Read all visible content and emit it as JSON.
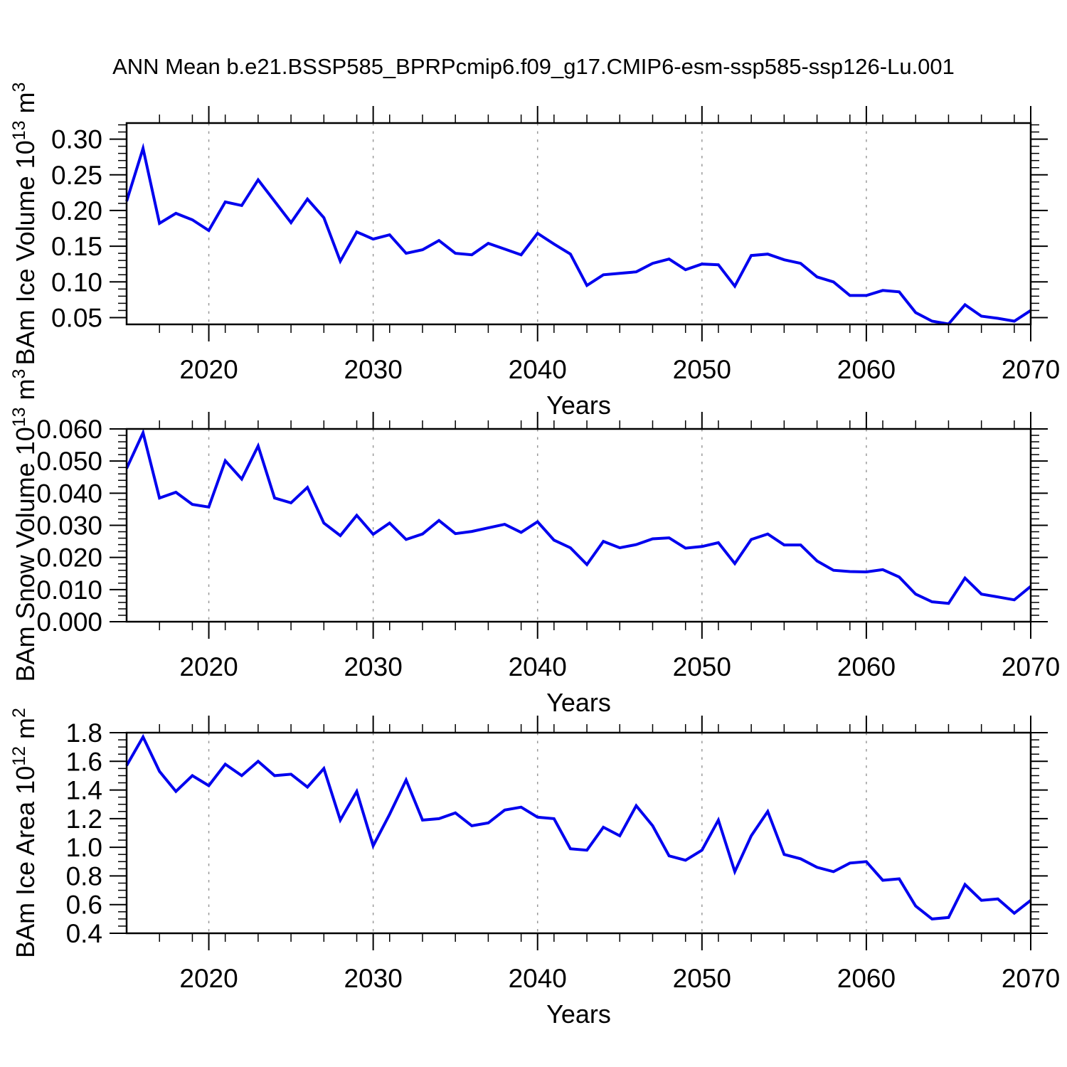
{
  "title": "ANN Mean b.e21.BSSP585_BPRPcmip6.f09_g17.CMIP6-esm-ssp585-ssp126-Lu.001",
  "line_color": "#0000ee",
  "grid_color": "#999999",
  "axis_color": "#000000",
  "years": [
    2015,
    2016,
    2017,
    2018,
    2019,
    2020,
    2021,
    2022,
    2023,
    2024,
    2025,
    2026,
    2027,
    2028,
    2029,
    2030,
    2031,
    2032,
    2033,
    2034,
    2035,
    2036,
    2037,
    2038,
    2039,
    2040,
    2041,
    2042,
    2043,
    2044,
    2045,
    2046,
    2047,
    2048,
    2049,
    2050,
    2051,
    2052,
    2053,
    2054,
    2055,
    2056,
    2057,
    2058,
    2059,
    2060,
    2061,
    2062,
    2063,
    2064,
    2065,
    2066,
    2067,
    2068,
    2069,
    2070
  ],
  "chart_data": [
    {
      "type": "line",
      "name": "ice-volume",
      "ylabel": "BAm Ice Volume 10^13 m^3",
      "ylabel_segments": [
        {
          "text": "BAm Ice Volume 10"
        },
        {
          "text": "13",
          "sup": true
        },
        {
          "text": " m"
        },
        {
          "text": "3",
          "sup": true
        }
      ],
      "xlabel": "Years",
      "xlim": [
        2015,
        2070
      ],
      "xticks": [
        2020,
        2030,
        2040,
        2050,
        2060,
        2070
      ],
      "xminor_step": 2,
      "ylim": [
        0.0405,
        0.3225
      ],
      "yticks": [
        0.05,
        0.1,
        0.15,
        0.2,
        0.25,
        0.3
      ],
      "yminor_step": 0.01,
      "ytick_decimals": 2,
      "grid": "vertical-dashed",
      "legend": "none",
      "values": [
        0.213,
        0.287,
        0.182,
        0.196,
        0.187,
        0.172,
        0.212,
        0.207,
        0.243,
        0.213,
        0.183,
        0.216,
        0.19,
        0.129,
        0.17,
        0.16,
        0.166,
        0.14,
        0.145,
        0.158,
        0.14,
        0.138,
        0.154,
        0.146,
        0.138,
        0.168,
        0.153,
        0.139,
        0.095,
        0.11,
        0.112,
        0.114,
        0.126,
        0.132,
        0.117,
        0.125,
        0.124,
        0.094,
        0.137,
        0.139,
        0.131,
        0.126,
        0.107,
        0.1,
        0.081,
        0.081,
        0.088,
        0.086,
        0.057,
        0.045,
        0.041,
        0.068,
        0.052,
        0.049,
        0.045,
        0.06
      ]
    },
    {
      "type": "line",
      "name": "snow-volume",
      "ylabel": "BAm Snow Volume 10^13 m^3",
      "ylabel_segments": [
        {
          "text": "BAm Snow Volume 10"
        },
        {
          "text": "13",
          "sup": true
        },
        {
          "text": " m"
        },
        {
          "text": "3",
          "sup": true
        }
      ],
      "xlabel": "Years",
      "xlim": [
        2015,
        2070
      ],
      "xticks": [
        2020,
        2030,
        2040,
        2050,
        2060,
        2070
      ],
      "xminor_step": 2,
      "ylim": [
        0.0,
        0.06
      ],
      "yticks": [
        0.0,
        0.01,
        0.02,
        0.03,
        0.04,
        0.05,
        0.06
      ],
      "yminor_step": 0.002,
      "ytick_decimals": 3,
      "grid": "vertical-dashed",
      "legend": "none",
      "values": [
        0.0477,
        0.0588,
        0.0385,
        0.0403,
        0.0365,
        0.0357,
        0.0501,
        0.0444,
        0.0547,
        0.0385,
        0.037,
        0.0418,
        0.0307,
        0.0268,
        0.0331,
        0.0272,
        0.0307,
        0.0256,
        0.0273,
        0.0315,
        0.0274,
        0.0281,
        0.0292,
        0.0303,
        0.0278,
        0.0311,
        0.0254,
        0.023,
        0.0178,
        0.025,
        0.023,
        0.024,
        0.0258,
        0.0261,
        0.0229,
        0.0234,
        0.0246,
        0.0181,
        0.0256,
        0.0273,
        0.0239,
        0.0239,
        0.0189,
        0.016,
        0.0156,
        0.0155,
        0.0162,
        0.0139,
        0.0086,
        0.0062,
        0.0057,
        0.0136,
        0.0086,
        0.0077,
        0.0068,
        0.011
      ]
    },
    {
      "type": "line",
      "name": "ice-area",
      "ylabel": "BAm Ice Area 10^12 m^2",
      "ylabel_segments": [
        {
          "text": "BAm Ice Area 10"
        },
        {
          "text": "12",
          "sup": true
        },
        {
          "text": " m"
        },
        {
          "text": "2",
          "sup": true
        }
      ],
      "xlabel": "Years",
      "xlim": [
        2015,
        2070
      ],
      "xticks": [
        2020,
        2030,
        2040,
        2050,
        2060,
        2070
      ],
      "xminor_step": 2,
      "ylim": [
        0.4,
        1.8
      ],
      "yticks": [
        0.4,
        0.6,
        0.8,
        1.0,
        1.2,
        1.4,
        1.6,
        1.8
      ],
      "yminor_step": 0.05,
      "ytick_decimals": 1,
      "grid": "vertical-dashed",
      "legend": "none",
      "values": [
        1.57,
        1.77,
        1.53,
        1.39,
        1.5,
        1.43,
        1.58,
        1.5,
        1.6,
        1.5,
        1.51,
        1.42,
        1.55,
        1.19,
        1.39,
        1.01,
        1.23,
        1.47,
        1.19,
        1.2,
        1.24,
        1.15,
        1.17,
        1.26,
        1.28,
        1.21,
        1.2,
        0.99,
        0.98,
        1.14,
        1.08,
        1.29,
        1.15,
        0.94,
        0.91,
        0.98,
        1.19,
        0.83,
        1.08,
        1.25,
        0.95,
        0.92,
        0.86,
        0.83,
        0.89,
        0.9,
        0.77,
        0.78,
        0.59,
        0.5,
        0.51,
        0.74,
        0.63,
        0.64,
        0.54,
        0.63
      ]
    }
  ]
}
